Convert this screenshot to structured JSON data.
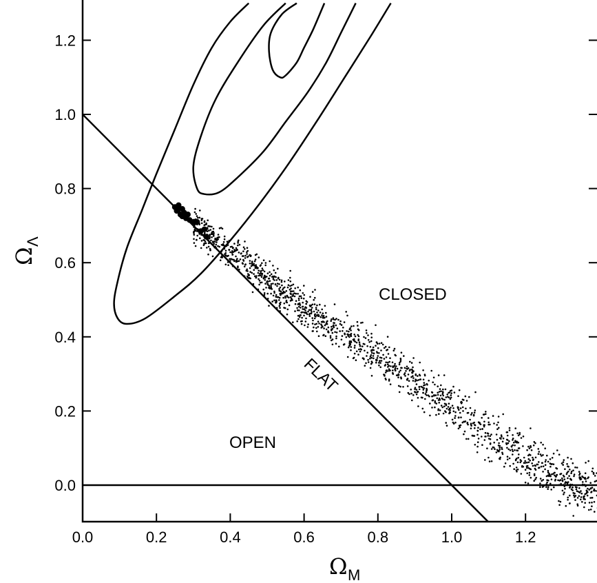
{
  "chart_data": {
    "type": "scatter",
    "title": "",
    "xlabel": "Ω",
    "xlabel_subscript": "M",
    "ylabel": "Ω",
    "ylabel_subscript": "Λ",
    "xlim": [
      0.0,
      1.4
    ],
    "ylim": [
      -0.1,
      1.3
    ],
    "x_ticks": [
      0.0,
      0.2,
      0.4,
      0.6,
      0.8,
      1.0,
      1.2
    ],
    "x_tick_labels": [
      "0.0",
      "0.2",
      "0.4",
      "0.6",
      "0.8",
      "1.0",
      "1.2"
    ],
    "y_ticks": [
      0.0,
      0.2,
      0.4,
      0.6,
      0.8,
      1.0,
      1.2
    ],
    "y_tick_labels": [
      "0.0",
      "0.2",
      "0.4",
      "0.6",
      "0.8",
      "1.0",
      "1.2"
    ],
    "grid": false,
    "legend": "none",
    "region_labels": {
      "closed": "CLOSED",
      "flat": "FLAT",
      "open": "OPEN"
    },
    "reference_lines": [
      {
        "name": "flat",
        "label": "FLAT",
        "points": [
          [
            0.0,
            1.0
          ],
          [
            1.1,
            -0.1
          ]
        ]
      },
      {
        "name": "zero-lambda",
        "points": [
          [
            0.0,
            0.0
          ],
          [
            1.4,
            0.0
          ]
        ]
      }
    ],
    "contours": [
      {
        "level": "outer",
        "points": [
          [
            0.45,
            1.3
          ],
          [
            0.4,
            1.25
          ],
          [
            0.35,
            1.18
          ],
          [
            0.3,
            1.08
          ],
          [
            0.25,
            0.96
          ],
          [
            0.2,
            0.84
          ],
          [
            0.16,
            0.74
          ],
          [
            0.12,
            0.64
          ],
          [
            0.095,
            0.55
          ],
          [
            0.085,
            0.49
          ],
          [
            0.095,
            0.45
          ],
          [
            0.12,
            0.435
          ],
          [
            0.17,
            0.45
          ],
          [
            0.25,
            0.51
          ],
          [
            0.32,
            0.57
          ],
          [
            0.4,
            0.66
          ],
          [
            0.48,
            0.76
          ],
          [
            0.56,
            0.87
          ],
          [
            0.64,
            0.99
          ],
          [
            0.71,
            1.1
          ],
          [
            0.78,
            1.21
          ],
          [
            0.835,
            1.3
          ]
        ]
      },
      {
        "level": "middle",
        "points": [
          [
            0.55,
            1.3
          ],
          [
            0.49,
            1.24
          ],
          [
            0.42,
            1.14
          ],
          [
            0.36,
            1.04
          ],
          [
            0.32,
            0.94
          ],
          [
            0.3,
            0.86
          ],
          [
            0.31,
            0.8
          ],
          [
            0.33,
            0.785
          ],
          [
            0.37,
            0.79
          ],
          [
            0.42,
            0.83
          ],
          [
            0.49,
            0.9
          ],
          [
            0.55,
            0.98
          ],
          [
            0.61,
            1.06
          ],
          [
            0.66,
            1.14
          ],
          [
            0.7,
            1.22
          ],
          [
            0.74,
            1.3
          ]
        ]
      },
      {
        "level": "inner",
        "points": [
          [
            0.58,
            1.3
          ],
          [
            0.54,
            1.27
          ],
          [
            0.51,
            1.22
          ],
          [
            0.505,
            1.17
          ],
          [
            0.515,
            1.12
          ],
          [
            0.535,
            1.1
          ],
          [
            0.55,
            1.105
          ],
          [
            0.58,
            1.14
          ],
          [
            0.6,
            1.18
          ],
          [
            0.625,
            1.23
          ],
          [
            0.655,
            1.3
          ]
        ]
      }
    ],
    "large_points": [
      [
        0.25,
        0.75
      ],
      [
        0.26,
        0.755
      ],
      [
        0.255,
        0.74
      ],
      [
        0.27,
        0.745
      ],
      [
        0.265,
        0.73
      ],
      [
        0.275,
        0.735
      ],
      [
        0.28,
        0.72
      ],
      [
        0.27,
        0.725
      ],
      [
        0.285,
        0.73
      ],
      [
        0.29,
        0.715
      ],
      [
        0.3,
        0.71
      ],
      [
        0.31,
        0.71
      ],
      [
        0.32,
        0.685
      ],
      [
        0.33,
        0.69
      ],
      [
        0.335,
        0.67
      ],
      [
        0.26,
        0.745
      ],
      [
        0.275,
        0.725
      ]
    ],
    "small_points_model": {
      "description": "dense band of small points",
      "x_range": [
        0.3,
        1.4
      ],
      "center_line": [
        [
          0.3,
          0.7
        ],
        [
          0.4,
          0.63
        ],
        [
          0.5,
          0.55
        ],
        [
          0.6,
          0.48
        ],
        [
          0.7,
          0.41
        ],
        [
          0.8,
          0.35
        ],
        [
          0.9,
          0.28
        ],
        [
          1.0,
          0.21
        ],
        [
          1.1,
          0.14
        ],
        [
          1.2,
          0.08
        ],
        [
          1.3,
          0.02
        ],
        [
          1.4,
          -0.03
        ]
      ],
      "spread": 0.03,
      "count": 1600
    }
  }
}
